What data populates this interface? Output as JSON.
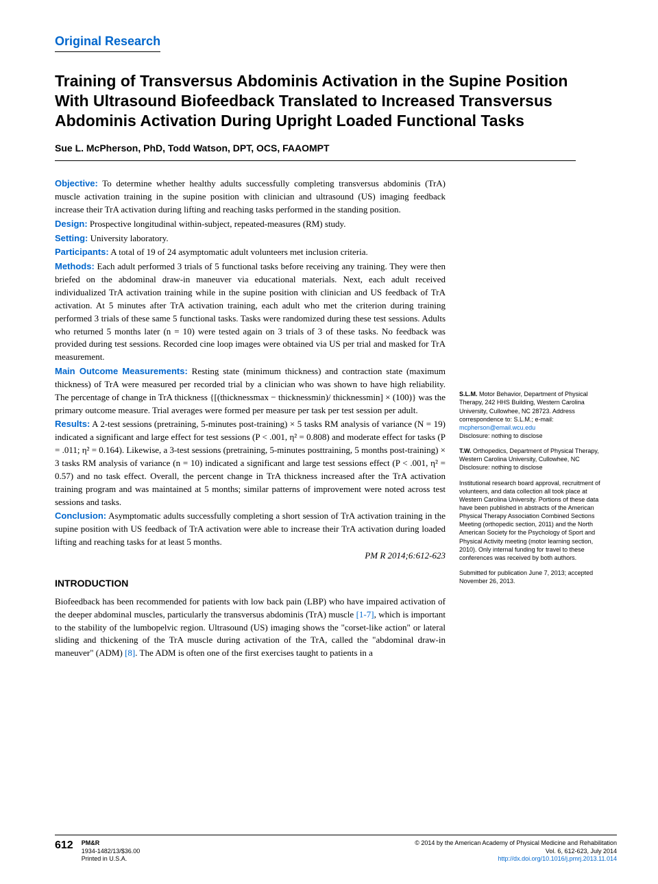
{
  "section_label": "Original Research",
  "title": "Training of Transversus Abdominis Activation in the Supine Position With Ultrasound Biofeedback Translated to Increased Transversus Abdominis Activation During Upright Loaded Functional Tasks",
  "authors": "Sue L. McPherson, PhD, Todd Watson, DPT, OCS, FAAOMPT",
  "abstract": {
    "objective": {
      "label": "Objective:",
      "text": "To determine whether healthy adults successfully completing transversus abdominis (TrA) muscle activation training in the supine position with clinician and ultrasound (US) imaging feedback increase their TrA activation during lifting and reaching tasks performed in the standing position."
    },
    "design": {
      "label": "Design:",
      "text": "Prospective longitudinal within-subject, repeated-measures (RM) study."
    },
    "setting": {
      "label": "Setting:",
      "text": "University laboratory."
    },
    "participants": {
      "label": "Participants:",
      "text": "A total of 19 of 24 asymptomatic adult volunteers met inclusion criteria."
    },
    "methods": {
      "label": "Methods:",
      "text": "Each adult performed 3 trials of 5 functional tasks before receiving any training. They were then briefed on the abdominal draw-in maneuver via educational materials. Next, each adult received individualized TrA activation training while in the supine position with clinician and US feedback of TrA activation. At 5 minutes after TrA activation training, each adult who met the criterion during training performed 3 trials of these same 5 functional tasks. Tasks were randomized during these test sessions. Adults who returned 5 months later (n = 10) were tested again on 3 trials of 3 of these tasks. No feedback was provided during test sessions. Recorded cine loop images were obtained via US per trial and masked for TrA measurement."
    },
    "main_outcome": {
      "label": "Main Outcome Measurements:",
      "text": "Resting state (minimum thickness) and contraction state (maximum thickness) of TrA were measured per recorded trial by a clinician who was shown to have high reliability. The percentage of change in TrA thickness {[(thicknessmax − thicknessmin)/ thicknessmin] × (100)} was the primary outcome measure. Trial averages were formed per measure per task per test session per adult."
    },
    "results": {
      "label": "Results:",
      "text": "A 2-test sessions (pretraining, 5-minutes post-training) × 5 tasks RM analysis of variance (N = 19) indicated a significant and large effect for test sessions (P < .001, η² = 0.808) and moderate effect for tasks (P = .011; η² = 0.164). Likewise, a 3-test sessions (pretraining, 5-minutes posttraining, 5 months post-training) × 3 tasks RM analysis of variance (n = 10) indicated a significant and large test sessions effect (P < .001, η² = 0.57) and no task effect. Overall, the percent change in TrA thickness increased after the TrA activation training program and was maintained at 5 months; similar patterns of improvement were noted across test sessions and tasks."
    },
    "conclusion": {
      "label": "Conclusion:",
      "text": "Asymptomatic adults successfully completing a short session of TrA activation training in the supine position with US feedback of TrA activation were able to increase their TrA activation during loaded lifting and reaching tasks for at least 5 months."
    }
  },
  "citation": "PM R 2014;6:612-623",
  "intro_heading": "INTRODUCTION",
  "intro_body_pre": "Biofeedback has been recommended for patients with low back pain (LBP) who have impaired activation of the deeper abdominal muscles, particularly the transversus abdominis (TrA) muscle ",
  "intro_ref1": "[1-7]",
  "intro_body_mid": ", which is important to the stability of the lumbopelvic region. Ultrasound (US) imaging shows the \"corset-like action\" or lateral sliding and thickening of the TrA muscle during activation of the TrA, called the \"abdominal draw-in maneuver\" (ADM) ",
  "intro_ref2": "[8]",
  "intro_body_post": ". The ADM is often one of the first exercises taught to patients in a",
  "sidebar": {
    "p1_pre": "S.L.M.",
    "p1": " Motor Behavior, Department of Physical Therapy, 242 HHS Building, Western Carolina University, Cullowhee, NC 28723. Address correspondence to: S.L.M.; e-mail: ",
    "p1_email": "mcpherson@email.wcu.edu",
    "p1_disc": "Disclosure: nothing to disclose",
    "p2_pre": "T.W.",
    "p2": " Orthopedics, Department of Physical Therapy, Western Carolina University, Cullowhee, NC",
    "p2_disc": "Disclosure: nothing to disclose",
    "p3": "Institutional research board approval, recruitment of volunteers, and data collection all took place at Western Carolina University. Portions of these data have been published in abstracts of the American Physical Therapy Association Combined Sections Meeting (orthopedic section, 2011) and the North American Society for the Psychology of Sport and Physical Activity meeting (motor learning section, 2010). Only internal funding for travel to these conferences was received by both authors.",
    "p4": "Submitted for publication June 7, 2013; accepted November 26, 2013."
  },
  "footer": {
    "page": "612",
    "journal": "PM&R",
    "issn": "1934-1482/13/$36.00",
    "printed": "Printed in U.S.A.",
    "copyright": "© 2014 by the American Academy of Physical Medicine and Rehabilitation",
    "vol": "Vol. 6, 612-623, July 2014",
    "doi": "http://dx.doi.org/10.1016/j.pmrj.2013.11.014"
  },
  "colors": {
    "link": "#0066cc",
    "text": "#000000",
    "bg": "#ffffff"
  }
}
